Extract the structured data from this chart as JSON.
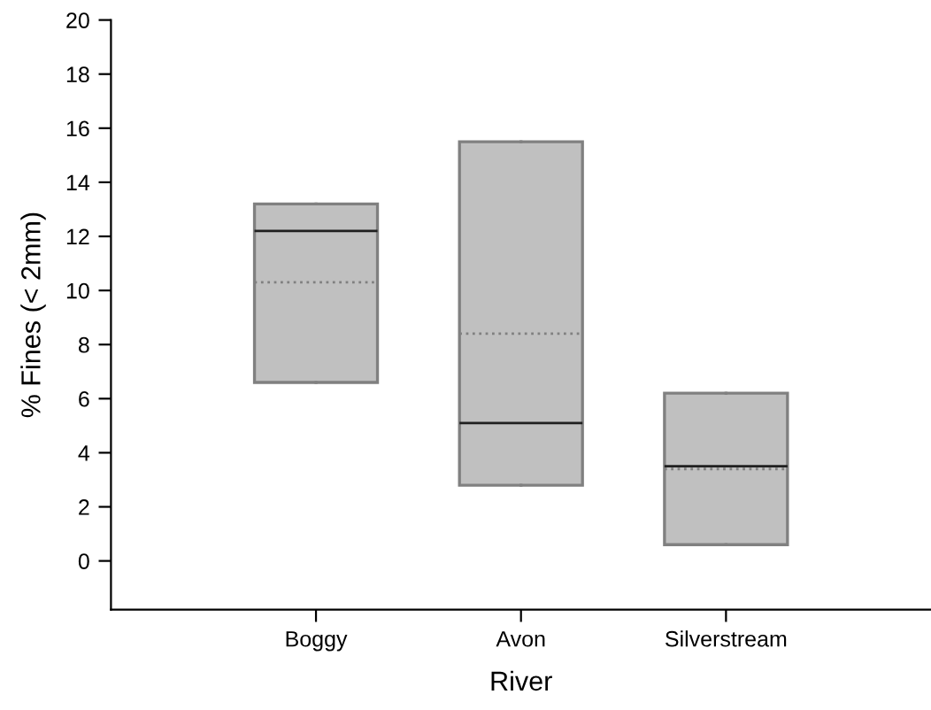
{
  "chart_data": {
    "type": "box",
    "xlabel": "River",
    "ylabel": "% Fines (< 2mm)",
    "categories": [
      "Boggy",
      "Avon",
      "Silverstream"
    ],
    "boxes": [
      {
        "low": 6.6,
        "q1": 6.6,
        "median": 12.2,
        "q3": 13.2,
        "high": 13.2,
        "mean": 10.3
      },
      {
        "low": 2.8,
        "q1": 2.8,
        "median": 5.1,
        "q3": 15.5,
        "high": 15.5,
        "mean": 8.4
      },
      {
        "low": 0.6,
        "q1": 0.6,
        "median": 3.5,
        "q3": 6.2,
        "high": 6.2,
        "mean": 3.4
      }
    ],
    "color": "#c0c0c0",
    "ylim": [
      -1.8,
      20
    ],
    "yticks": [
      0,
      2,
      4,
      6,
      8,
      10,
      12,
      14,
      16,
      18,
      20
    ],
    "grid": false,
    "legend": false
  }
}
